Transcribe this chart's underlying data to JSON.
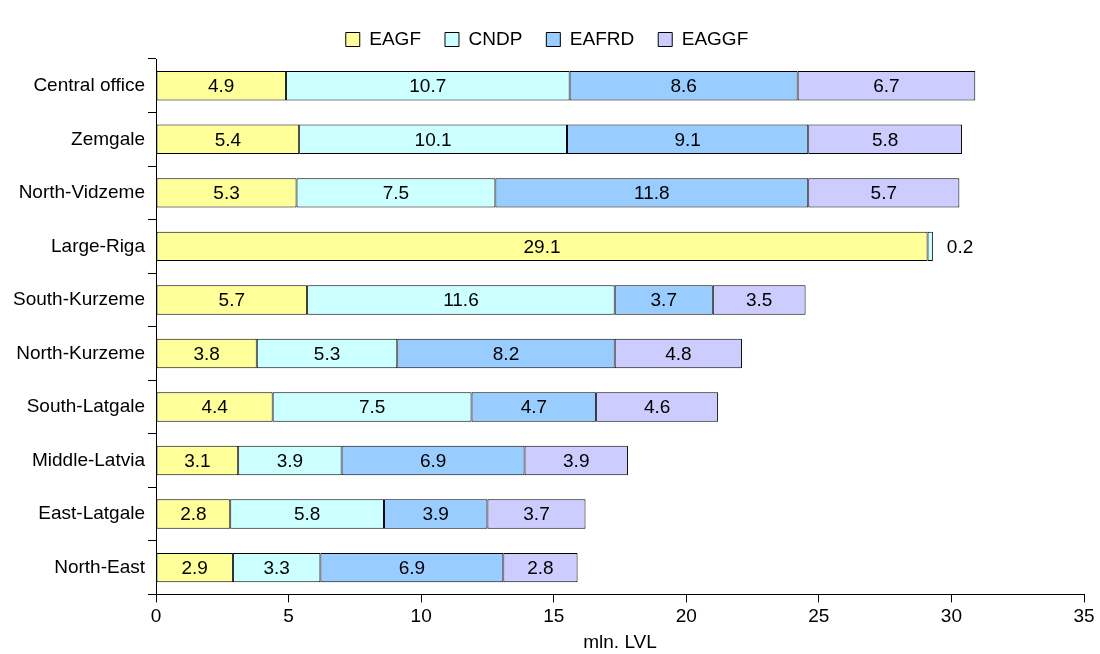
{
  "chart_data": {
    "type": "bar",
    "orientation": "horizontal",
    "stacked": true,
    "xlabel": "mln. LVL",
    "categories": [
      "Central office",
      "Zemgale",
      "North-Vidzeme",
      "Large-Riga",
      "South-Kurzeme",
      "North-Kurzeme",
      "South-Latgale",
      "Middle-Latvia",
      "East-Latgale",
      "North-East"
    ],
    "series": [
      {
        "name": "EAGF",
        "color": "#ffff99",
        "values": [
          4.9,
          5.4,
          5.3,
          29.1,
          5.7,
          3.8,
          4.4,
          3.1,
          2.8,
          2.9
        ]
      },
      {
        "name": "CNDP",
        "color": "#ccffff",
        "values": [
          10.7,
          10.1,
          7.5,
          0.2,
          11.6,
          5.3,
          7.5,
          3.9,
          5.8,
          3.3
        ]
      },
      {
        "name": "EAFRD",
        "color": "#99ccff",
        "values": [
          8.6,
          9.1,
          11.8,
          null,
          3.7,
          8.2,
          4.7,
          6.9,
          3.9,
          6.9
        ]
      },
      {
        "name": "EAGGF",
        "color": "#ccccff",
        "values": [
          6.7,
          5.8,
          5.7,
          null,
          3.5,
          4.8,
          4.6,
          3.9,
          3.7,
          2.8
        ]
      }
    ],
    "xlim": [
      0,
      35
    ],
    "xticks": [
      0,
      5,
      10,
      15,
      20,
      25,
      30,
      35
    ],
    "grid": false,
    "legend": "top",
    "data_labels": true
  }
}
